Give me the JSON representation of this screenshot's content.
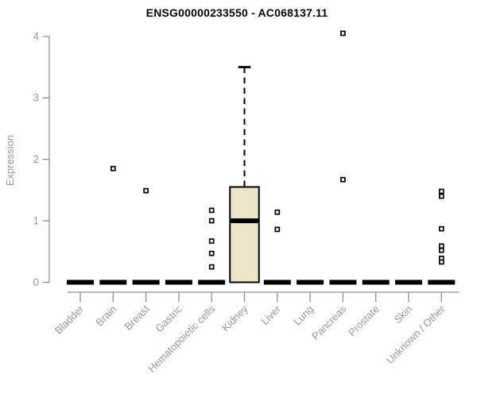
{
  "chart_data": {
    "type": "boxplot",
    "title": "ENSG00000233550 - AC068137.11",
    "ylabel": "Expression",
    "xlabel": "",
    "ylim": [
      0,
      4
    ],
    "yticks": [
      0,
      1,
      2,
      3,
      4
    ],
    "grid": "off",
    "legend": "none",
    "categories": [
      "Bladder",
      "Brain",
      "Breast",
      "Gastric",
      "Hematopoietic cells",
      "Kidney",
      "Liver",
      "Lung",
      "Pancreas",
      "Prostate",
      "Skin",
      "Unknown / Other"
    ],
    "boxes": [
      {
        "category": "Bladder",
        "whisker_low": 0,
        "q1": 0,
        "median": 0,
        "q3": 0,
        "whisker_high": 0,
        "outliers": []
      },
      {
        "category": "Brain",
        "whisker_low": 0,
        "q1": 0,
        "median": 0,
        "q3": 0,
        "whisker_high": 0,
        "outliers": [
          1.85
        ]
      },
      {
        "category": "Breast",
        "whisker_low": 0,
        "q1": 0,
        "median": 0,
        "q3": 0,
        "whisker_high": 0,
        "outliers": [
          1.49
        ]
      },
      {
        "category": "Gastric",
        "whisker_low": 0,
        "q1": 0,
        "median": 0,
        "q3": 0,
        "whisker_high": 0,
        "outliers": []
      },
      {
        "category": "Hematopoietic cells",
        "whisker_low": 0,
        "q1": 0,
        "median": 0,
        "q3": 0,
        "whisker_high": 0,
        "outliers": [
          1.17,
          1.0,
          0.67,
          0.47,
          0.25
        ]
      },
      {
        "category": "Kidney",
        "whisker_low": 0,
        "q1": 0,
        "median": 1.0,
        "q3": 1.55,
        "whisker_high": 3.5,
        "outliers": []
      },
      {
        "category": "Liver",
        "whisker_low": 0,
        "q1": 0,
        "median": 0,
        "q3": 0,
        "whisker_high": 0,
        "outliers": [
          1.14,
          0.86
        ]
      },
      {
        "category": "Lung",
        "whisker_low": 0,
        "q1": 0,
        "median": 0,
        "q3": 0,
        "whisker_high": 0,
        "outliers": []
      },
      {
        "category": "Pancreas",
        "whisker_low": 0,
        "q1": 0,
        "median": 0,
        "q3": 0,
        "whisker_high": 0,
        "outliers": [
          4.05,
          1.67
        ]
      },
      {
        "category": "Prostate",
        "whisker_low": 0,
        "q1": 0,
        "median": 0,
        "q3": 0,
        "whisker_high": 0,
        "outliers": []
      },
      {
        "category": "Skin",
        "whisker_low": 0,
        "q1": 0,
        "median": 0,
        "q3": 0,
        "whisker_high": 0,
        "outliers": []
      },
      {
        "category": "Unknown / Other",
        "whisker_low": 0,
        "q1": 0,
        "median": 0,
        "q3": 0,
        "whisker_high": 0,
        "outliers": [
          1.48,
          1.4,
          0.87,
          0.59,
          0.52,
          0.39,
          0.33
        ]
      }
    ],
    "colors": {
      "box_fill": "#ece5c8",
      "box_stroke": "#000000",
      "median": "#000000",
      "whisker": "#000000",
      "outlier_stroke": "#000000",
      "outlier_fill": "#ffffff",
      "axis_line": "#8e8e8e",
      "tick_label": "#999999",
      "title": "#000000"
    }
  }
}
